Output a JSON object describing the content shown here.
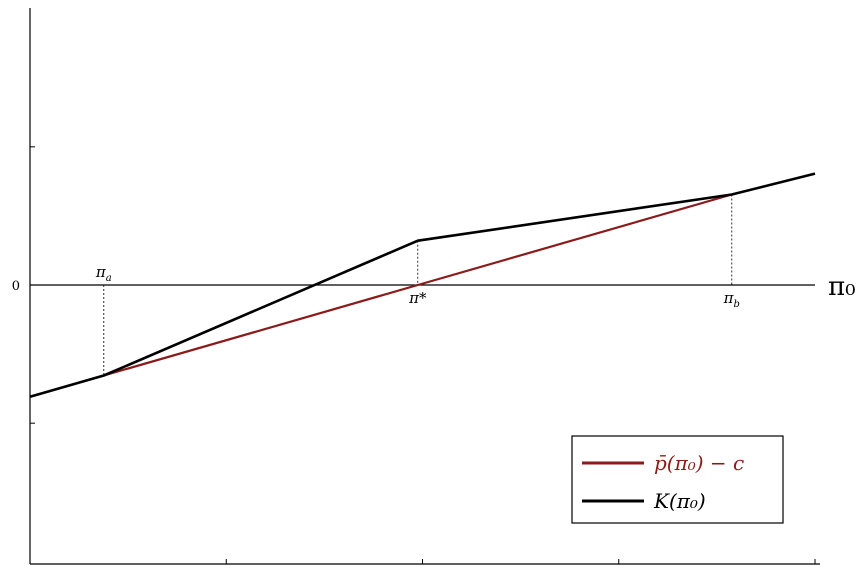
{
  "chart_data": {
    "type": "line",
    "title": "",
    "xlabel": "π₀",
    "ylabel": "",
    "y_tick_labels": [
      "0"
    ],
    "grid": false,
    "legend_placement": "bottom-right",
    "x_domain": [
      0,
      1
    ],
    "y_domain": [
      -1,
      1
    ],
    "x_axis_at_y": 0,
    "series": [
      {
        "name": "p̄(π₀) − c",
        "color": "#8b1a1a",
        "points": [
          [
            0.094,
            -0.321
          ],
          [
            0.494,
            0.0
          ],
          [
            0.894,
            0.321
          ]
        ]
      },
      {
        "name": "K(π₀)",
        "color": "#000000",
        "points": [
          [
            0.0,
            -0.396
          ],
          [
            0.094,
            -0.321
          ],
          [
            0.494,
            0.157
          ],
          [
            0.894,
            0.321
          ],
          [
            1.0,
            0.395
          ]
        ]
      }
    ],
    "annotations": [
      {
        "label": "π_a",
        "x": 0.094,
        "y_top": 0.0,
        "y_bottom": -0.321,
        "text_side": "above"
      },
      {
        "label": "π*",
        "x": 0.494,
        "y_top": 0.157,
        "y_bottom": 0.0,
        "text_side": "below"
      },
      {
        "label": "π_b",
        "x": 0.894,
        "y_top": 0.321,
        "y_bottom": 0.0,
        "text_side": "below"
      }
    ]
  },
  "legend": {
    "entries": [
      {
        "label": "p̄(π₀) − c",
        "color": "#8b1a1a"
      },
      {
        "label": "K(π₀)",
        "color": "#000000"
      }
    ]
  }
}
